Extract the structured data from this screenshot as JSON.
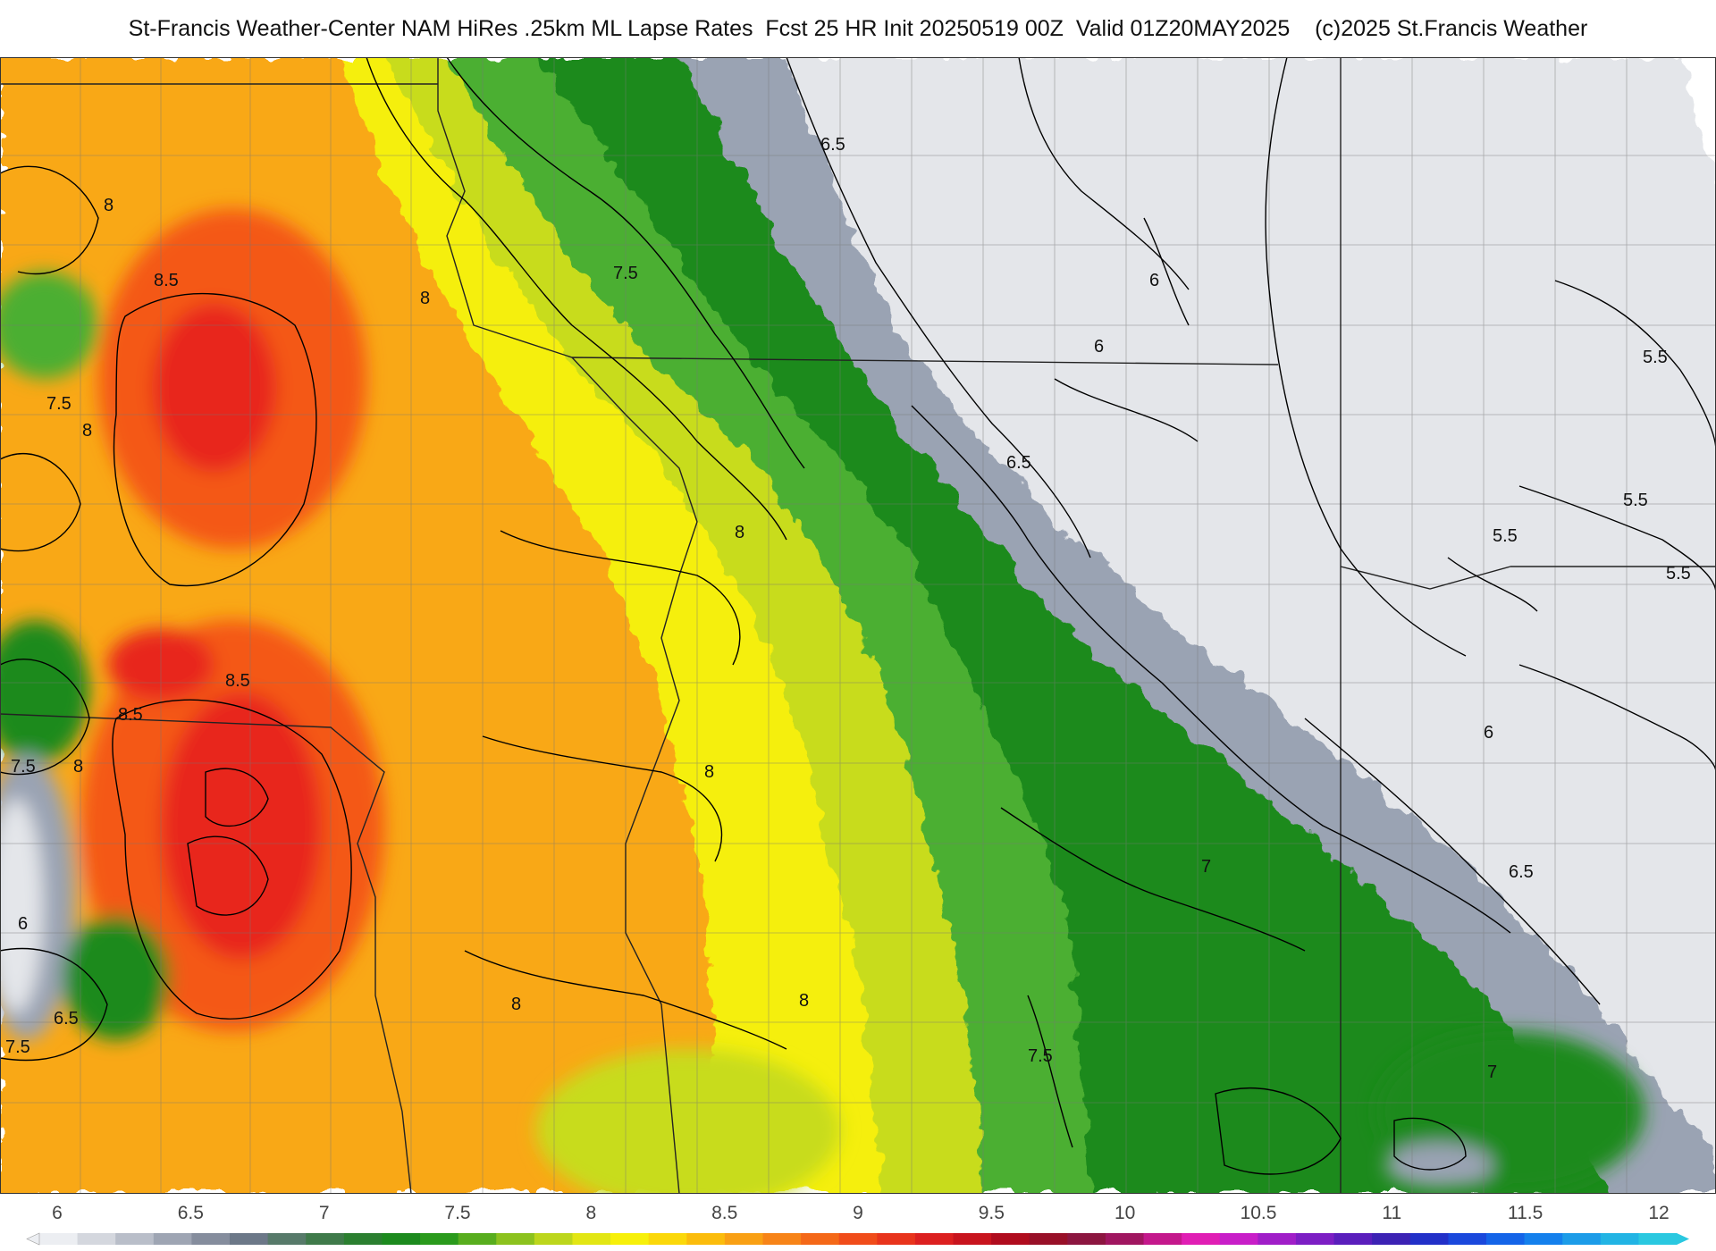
{
  "header": {
    "title": "St-Francis Weather-Center NAM HiRes .25km ML Lapse Rates  Fcst 25 HR Init 20250519 00Z  Valid 01Z20MAY2025    (c)2025 St.Francis Weather"
  },
  "map": {
    "field": "ML Lapse Rates",
    "contour_labels": [
      "6.5",
      "7.5",
      "8",
      "8.5",
      "8",
      "7.5",
      "8",
      "6",
      "6",
      "6.5",
      "8",
      "5.5",
      "5.5",
      "5.5",
      "5.5",
      "8.5",
      "8.5",
      "8",
      "7.5",
      "8",
      "6",
      "7",
      "6.5",
      "6",
      "6.5",
      "8",
      "8",
      "7.5",
      "7.5",
      "7"
    ],
    "colors": {
      "white_region": "#ffffff",
      "light_gray": "#e4e6ea",
      "gray": "#9aa3b3",
      "dark_green": "#1e8a1e",
      "green": "#4caf32",
      "yellow_green": "#c8dc1e",
      "yellow": "#f5ef0a",
      "orange": "#f9a814",
      "red_orange": "#f45818",
      "red": "#e8281e"
    }
  },
  "colorbar": {
    "ticks": [
      "6",
      "6.5",
      "7",
      "7.5",
      "8",
      "8.5",
      "9",
      "9.5",
      "10",
      "10.5",
      "11",
      "11.5",
      "12"
    ],
    "colors": [
      "#eceef2",
      "#d4d7de",
      "#b9bec9",
      "#9ea5b3",
      "#858d9d",
      "#6c7888",
      "#577a6a",
      "#3f7a4a",
      "#2b7f30",
      "#1c8a1e",
      "#2a9a1c",
      "#58ad1e",
      "#8cc21e",
      "#bcd61c",
      "#e2e614",
      "#f7f00a",
      "#fbd80a",
      "#fbbc0c",
      "#f9a014",
      "#f78418",
      "#f46818",
      "#f04c1a",
      "#e8341c",
      "#dc2020",
      "#c8141e",
      "#b00c1e",
      "#981028",
      "#8c1640",
      "#a01660",
      "#c4188c",
      "#e01eb4",
      "#c81ec8",
      "#a01ec8",
      "#7c1ec4",
      "#5a1ebc",
      "#3c22b4",
      "#2230c8",
      "#1a48dc",
      "#1464e8",
      "#1480ec",
      "#1c9ce8",
      "#22b4e4",
      "#2ac8e0"
    ]
  }
}
